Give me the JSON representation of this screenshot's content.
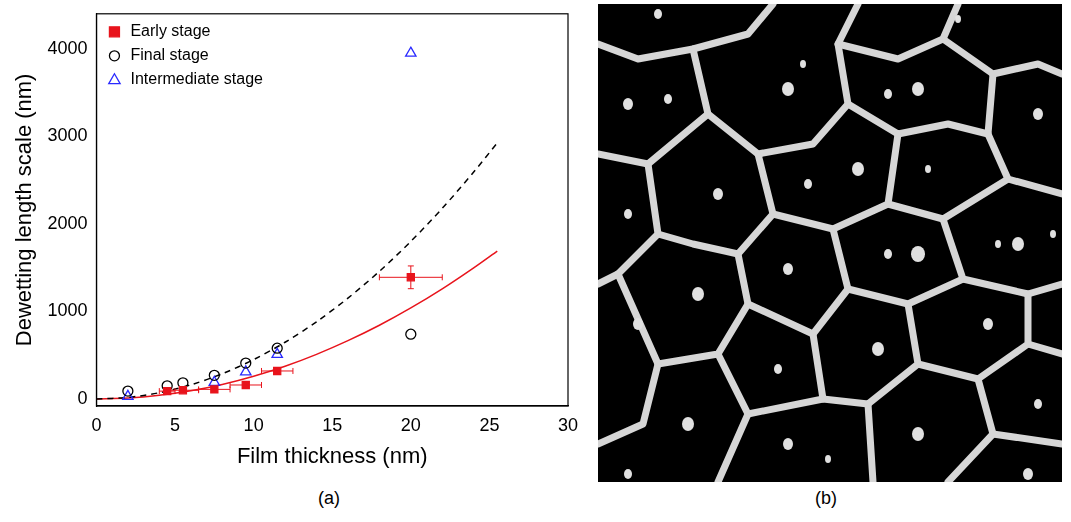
{
  "chart_data": {
    "type": "scatter",
    "x_label": "Film thickness (nm)",
    "y_label": "Dewetting length scale (nm)",
    "xlim": [
      0,
      30
    ],
    "xticks": [
      0,
      5,
      10,
      15,
      20,
      25,
      30
    ],
    "ylim": [
      -80,
      4400
    ],
    "yticks": [
      0,
      1000,
      2000,
      3000,
      4000
    ],
    "grid": false,
    "legend": "upper left",
    "series": [
      {
        "name": "Early stage",
        "color": "#e8141c",
        "marker": "square",
        "x": [
          4.5,
          5.5,
          7.5,
          9.5,
          11.5,
          20
        ],
        "values": [
          90,
          100,
          110,
          160,
          320,
          1390
        ],
        "x_error": [
          0.5,
          1,
          1,
          1,
          1,
          2
        ],
        "y_error": [
          20,
          20,
          20,
          30,
          30,
          130
        ]
      },
      {
        "name": "Final stage",
        "color": "#000000",
        "marker": "circle-open",
        "x": [
          2,
          4.5,
          5.5,
          7.5,
          9.5,
          11.5,
          20
        ],
        "values": [
          90,
          150,
          185,
          270,
          410,
          580,
          740
        ]
      },
      {
        "name": "Intermediate stage",
        "color": "#2a2aff",
        "marker": "triangle-open",
        "x": [
          2,
          7.5,
          9.5,
          11.5,
          20
        ],
        "values": [
          30,
          190,
          310,
          510,
          3950
        ]
      },
      {
        "type": "line",
        "color": "#000000",
        "line_style": "dashed",
        "x": [
          0,
          2,
          4,
          6,
          8,
          10,
          12,
          14,
          16,
          18,
          20,
          22,
          24,
          25.5
        ],
        "values": [
          0,
          18,
          72,
          162,
          288,
          450,
          648,
          882,
          1152,
          1458,
          1800,
          2178,
          2592,
          2926
        ]
      },
      {
        "type": "line",
        "color": "#e8141c",
        "line_style": "solid",
        "x": [
          0,
          2,
          4,
          6,
          8,
          10,
          12,
          14,
          16,
          18,
          20,
          22,
          24,
          25.5
        ],
        "values": [
          0,
          10,
          42,
          94,
          166,
          260,
          374,
          510,
          666,
          842,
          1040,
          1258,
          1498,
          1690
        ]
      }
    ]
  },
  "panel_labels": [
    "(a)",
    "(b)"
  ]
}
